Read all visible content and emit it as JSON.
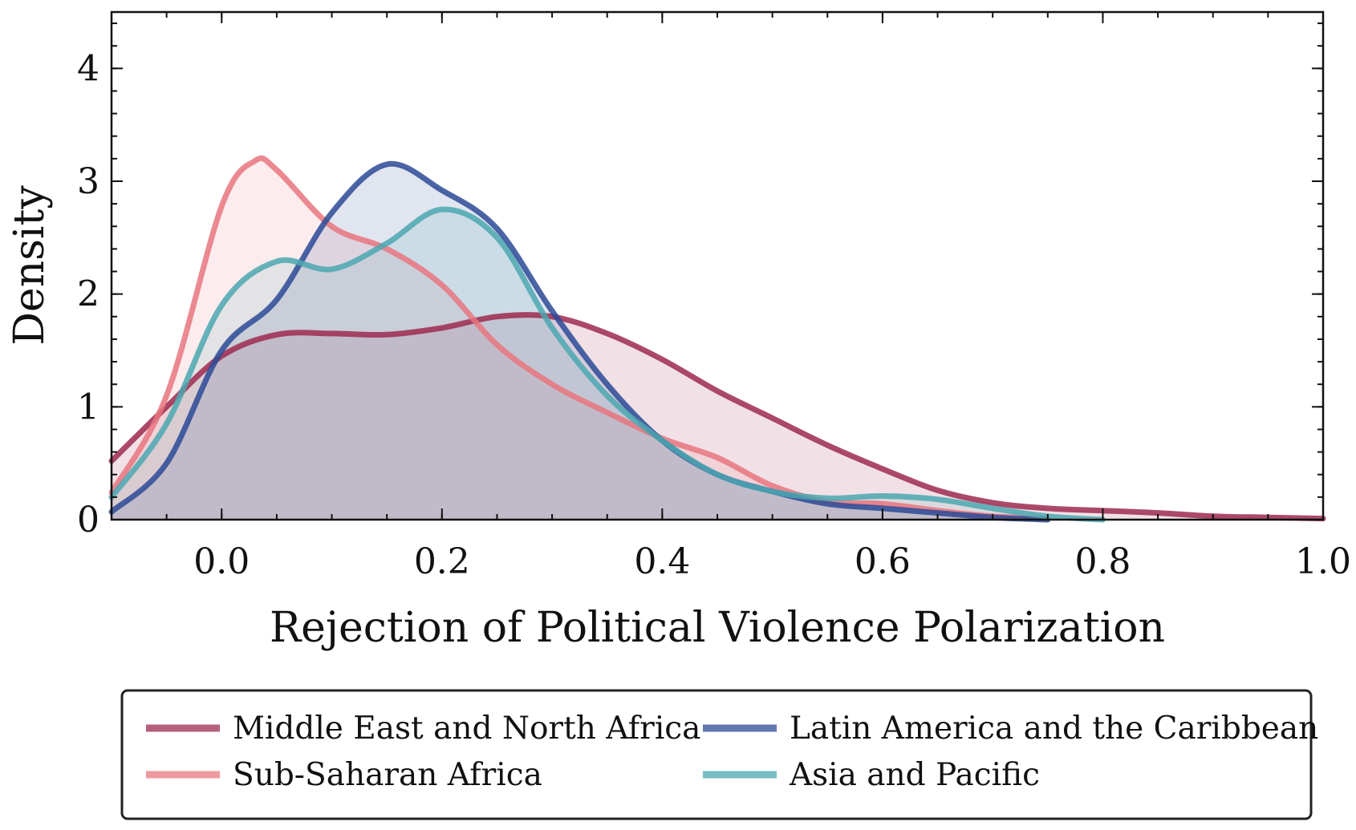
{
  "chart_data": {
    "type": "area",
    "xlabel": "Rejection of Political Violence Polarization",
    "ylabel": "Density",
    "xlim": [
      -0.1,
      1.0
    ],
    "ylim": [
      0,
      4.5
    ],
    "xticks": [
      "0.0",
      "0.2",
      "0.4",
      "0.6",
      "0.8",
      "1.0"
    ],
    "yticks": [
      "0",
      "1",
      "2",
      "3",
      "4"
    ],
    "grid": false,
    "legend_placement": "below",
    "series": [
      {
        "name": "Middle East and North Africa",
        "color": "#9e2a4f",
        "x": [
          -0.1,
          -0.05,
          0.0,
          0.05,
          0.1,
          0.15,
          0.2,
          0.25,
          0.3,
          0.35,
          0.4,
          0.45,
          0.5,
          0.55,
          0.6,
          0.65,
          0.7,
          0.75,
          0.8,
          0.85,
          0.9,
          0.95,
          1.0
        ],
        "values": [
          0.52,
          1.0,
          1.45,
          1.64,
          1.65,
          1.64,
          1.7,
          1.8,
          1.8,
          1.65,
          1.42,
          1.14,
          0.9,
          0.66,
          0.45,
          0.26,
          0.15,
          0.1,
          0.08,
          0.06,
          0.03,
          0.02,
          0.01
        ]
      },
      {
        "name": "Sub-Saharan Africa",
        "color": "#e8767f",
        "x": [
          -0.1,
          -0.05,
          0.0,
          0.03,
          0.05,
          0.1,
          0.15,
          0.2,
          0.25,
          0.3,
          0.35,
          0.4,
          0.45,
          0.5,
          0.55,
          0.6,
          0.65,
          0.7,
          0.75
        ],
        "values": [
          0.24,
          1.1,
          2.78,
          3.18,
          3.1,
          2.6,
          2.4,
          2.08,
          1.55,
          1.2,
          0.95,
          0.72,
          0.55,
          0.3,
          0.16,
          0.14,
          0.08,
          0.03,
          0.01
        ]
      },
      {
        "name": "Latin America and the Caribbean",
        "color": "#2c4a96",
        "x": [
          -0.1,
          -0.05,
          0.0,
          0.05,
          0.1,
          0.15,
          0.2,
          0.25,
          0.3,
          0.35,
          0.4,
          0.45,
          0.5,
          0.55,
          0.6,
          0.65,
          0.7,
          0.75
        ],
        "values": [
          0.07,
          0.5,
          1.5,
          1.95,
          2.72,
          3.15,
          2.92,
          2.58,
          1.85,
          1.2,
          0.7,
          0.4,
          0.25,
          0.14,
          0.1,
          0.06,
          0.02,
          0.0
        ]
      },
      {
        "name": "Asia and Pacific",
        "color": "#4ba7b0",
        "x": [
          -0.1,
          -0.05,
          0.0,
          0.05,
          0.1,
          0.15,
          0.2,
          0.25,
          0.3,
          0.35,
          0.4,
          0.45,
          0.5,
          0.55,
          0.6,
          0.65,
          0.7,
          0.75,
          0.8
        ],
        "values": [
          0.2,
          0.85,
          1.9,
          2.29,
          2.22,
          2.45,
          2.75,
          2.5,
          1.7,
          1.1,
          0.7,
          0.4,
          0.25,
          0.19,
          0.21,
          0.18,
          0.1,
          0.03,
          0.0
        ]
      }
    ]
  }
}
